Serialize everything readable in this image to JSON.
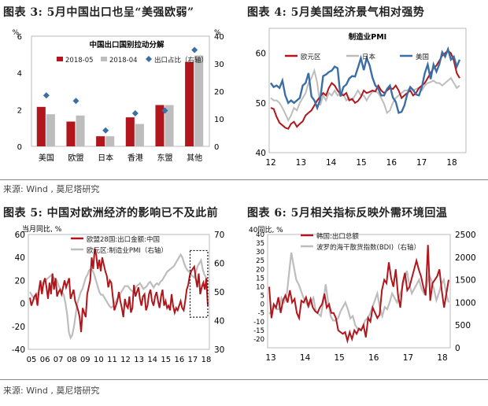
{
  "panels": [
    {
      "title": "图表 3:  5月中国出口也呈“美强欧弱”"
    },
    {
      "title": "图表 4:  5月美国经济景气相对强势"
    },
    {
      "title": "图表 5:  中国对欧洲经济的影响已不及此前"
    },
    {
      "title": "图表 6:  5月相关指标反映外需环境回温"
    }
  ],
  "sources": [
    "来源: Wind , 莫尼塔研究",
    "来源: Wind , 莫尼塔研究"
  ],
  "colors": {
    "red": "#b0161c",
    "gray": "#bdbdbd",
    "blue": "#3b6ea5",
    "navy": "#25518a"
  },
  "chart_data": [
    {
      "type": "bar",
      "title": "中国出口国别拉动分解",
      "categories": [
        "美国",
        "欧盟",
        "日本",
        "香港",
        "东盟",
        "其他"
      ],
      "series": [
        {
          "name": "2018-05",
          "values": [
            2.15,
            1.35,
            0.55,
            1.58,
            2.25,
            4.6
          ]
        },
        {
          "name": "2018-04",
          "values": [
            1.75,
            1.68,
            0.55,
            1.22,
            2.25,
            4.95
          ]
        },
        {
          "name": "出口占比（右轴）",
          "axis": "right",
          "values": [
            18.5,
            16.5,
            5.8,
            12.0,
            13.0,
            35.0
          ]
        }
      ],
      "ylim": [
        0,
        6
      ],
      "yticks": [
        0,
        2,
        4,
        6
      ],
      "y2lim": [
        0,
        40
      ],
      "y2ticks": [
        0,
        10,
        20,
        30,
        40
      ],
      "yunit": "%",
      "y2unit": "%"
    },
    {
      "type": "line",
      "title": "制造业PMI",
      "xticks": [
        "12",
        "13",
        "14",
        "15",
        "16",
        "17",
        "18"
      ],
      "ylim": [
        40,
        65
      ],
      "yticks": [
        40,
        50,
        60
      ],
      "series": [
        {
          "name": "欧元区",
          "values": [
            49.0,
            48.8,
            47.2,
            46.0,
            45.5,
            45.0,
            44.8,
            45.8,
            46.2,
            45.2,
            45.8,
            46.3,
            47.5,
            48.0,
            48.5,
            49.5,
            50.5,
            51.2,
            52.0,
            51.5,
            53.0,
            54.0,
            53.5,
            52.5,
            51.8,
            51.5,
            52.0,
            50.5,
            50.8,
            50.0,
            50.4,
            51.2,
            52.5,
            52.0,
            52.2,
            52.5,
            52.3,
            53.5,
            52.5,
            52.0,
            52.5,
            53.0,
            52.8,
            53.5,
            52.5,
            51.0,
            51.5,
            52.0,
            52.5,
            51.5,
            52.0,
            53.0,
            53.5,
            54.0,
            55.0,
            56.0,
            57.0,
            57.5,
            58.5,
            59.5,
            60.0,
            60.5,
            60.0,
            58.5,
            56.0,
            55.0
          ],
          "color": "#b0161c"
        },
        {
          "name": "日本",
          "values": [
            51.0,
            50.5,
            50.5,
            50.0,
            49.0,
            47.8,
            46.5,
            47.5,
            49.0,
            48.5,
            50.0,
            51.0,
            52.0,
            54.0,
            55.0,
            56.5,
            54.0,
            49.5,
            51.5,
            50.5,
            52.0,
            51.5,
            52.5,
            51.5,
            52.0,
            51.8,
            50.5,
            51.0,
            50.5,
            51.5,
            52.5,
            51.5,
            51.5,
            50.5,
            51.5,
            52.2,
            52.4,
            52.0,
            51.0,
            49.8,
            48.0,
            48.5,
            50.0,
            51.0,
            51.5,
            52.0,
            52.5,
            52.5,
            53.0,
            52.5,
            52.8,
            53.0,
            52.5,
            53.5,
            54.0,
            54.2,
            54.5,
            54.0,
            54.0,
            53.5,
            54.0,
            54.5,
            55.0,
            54.0,
            53.0,
            53.5
          ],
          "color": "#bdbdbd"
        },
        {
          "name": "美国",
          "values": [
            54.0,
            53.2,
            53.5,
            53.0,
            54.5,
            51.5,
            50.0,
            50.5,
            50.0,
            50.5,
            51.0,
            53.5,
            54.0,
            56.0,
            51.3,
            50.5,
            49.0,
            50.7,
            55.4,
            55.7,
            56.2,
            56.5,
            57.3,
            57.0,
            51.3,
            53.2,
            53.7,
            54.9,
            55.4,
            55.3,
            57.1,
            59.0,
            56.6,
            59.0,
            57.6,
            55.1,
            53.5,
            52.9,
            51.5,
            51.5,
            52.8,
            53.5,
            51.1,
            50.2,
            48.0,
            48.2,
            49.5,
            51.8,
            53.2,
            52.6,
            51.7,
            51.5,
            53.2,
            56.0,
            57.7,
            54.8,
            57.7,
            56.3,
            57.8,
            60.2,
            59.3,
            60.8,
            58.7,
            59.3,
            57.3,
            58.7
          ],
          "color": "#3b6ea5"
        }
      ]
    },
    {
      "type": "line",
      "title": "",
      "yunit": "当月同比, %",
      "xticks": [
        "05",
        "06",
        "07",
        "08",
        "09",
        "10",
        "11",
        "12",
        "13",
        "14",
        "15",
        "16",
        "17",
        "18"
      ],
      "ylim": [
        -40,
        60
      ],
      "yticks": [
        -40,
        -20,
        0,
        20,
        40,
        60
      ],
      "y2lim": [
        30,
        70
      ],
      "y2ticks": [
        30,
        40,
        50,
        60,
        70
      ],
      "annotation": "dotted box 2016-10 to 2018-06",
      "series": [
        {
          "name": "欧盟28国:出口金额:中国",
          "values": [
            5,
            -2,
            2,
            6,
            8,
            -2,
            12,
            20,
            8,
            18,
            22,
            14,
            4,
            18,
            8,
            26,
            12,
            22,
            6,
            10,
            12,
            8,
            14,
            20,
            14,
            18,
            22,
            4,
            8,
            12,
            2,
            -2,
            -6,
            -12,
            -25,
            -4,
            -8,
            -12,
            8,
            14,
            20,
            40,
            30,
            48,
            42,
            30,
            38,
            28,
            40,
            34,
            28,
            24,
            14,
            20,
            18,
            6,
            -6,
            -2,
            2,
            10,
            2,
            -4,
            -12,
            4,
            -2,
            -4,
            6,
            -8,
            -4,
            16,
            6,
            10,
            14,
            4,
            -2,
            6,
            8,
            -6,
            -2,
            8,
            12,
            2,
            -2,
            6,
            10,
            2,
            -4,
            6,
            12,
            -2,
            2,
            -4,
            -2,
            -6,
            8,
            -2,
            -8,
            -4,
            -6,
            -2,
            2,
            -4,
            -6,
            2,
            12,
            16,
            24,
            28,
            30,
            32,
            22,
            14,
            26,
            8,
            14,
            18,
            12,
            22,
            -2
          ],
          "color": "#b0161c"
        },
        {
          "name": "欧元区:制造业PMI（右轴）",
          "axis": "right",
          "values": [
            50,
            49,
            48,
            47.5,
            48.5,
            49.8,
            51,
            51.5,
            52.5,
            53.5,
            54.5,
            55,
            55.5,
            56,
            55,
            54.5,
            54,
            52,
            51,
            50,
            49,
            46,
            42,
            36,
            34,
            35,
            38,
            42,
            46,
            48,
            50,
            51,
            53,
            55,
            56,
            57.5,
            58,
            57.5,
            56,
            54,
            52,
            50,
            49,
            49,
            48,
            47,
            46,
            45,
            44.5,
            45,
            46,
            47,
            48,
            49,
            50,
            51,
            52,
            52,
            52,
            51,
            50.5,
            50,
            51,
            52,
            52.5,
            53,
            52,
            51,
            51.5,
            52,
            53,
            53.5,
            52.5,
            51.5,
            52.5,
            53,
            52.5,
            53.5,
            54,
            55,
            56,
            57,
            57.5,
            58,
            58.5,
            59,
            60,
            61,
            62,
            63,
            62,
            60,
            58.5,
            57.5,
            57,
            56,
            55.5,
            55,
            57,
            59,
            60,
            61,
            58,
            56,
            55,
            54
          ],
          "color": "#bdbdbd"
        }
      ]
    },
    {
      "type": "line",
      "title": "",
      "yunit": "40同比, %",
      "xticks": [
        "13",
        "14",
        "15",
        "16",
        "17",
        "18"
      ],
      "ylim": [
        -25,
        40
      ],
      "yticks": [
        -20,
        -15,
        -10,
        -5,
        0,
        5,
        10,
        15,
        20,
        25,
        30,
        35,
        40
      ],
      "y2lim": [
        0,
        2500
      ],
      "y2ticks": [
        0,
        500,
        1000,
        1500,
        2000,
        2500
      ],
      "series": [
        {
          "name": "韩国:出口总额",
          "values": [
            10,
            -8,
            0,
            -2,
            4,
            -5,
            2,
            5,
            1,
            8,
            1,
            3,
            -5,
            -8,
            2,
            1,
            4,
            -1,
            3,
            -2,
            -4,
            -5,
            -2,
            0,
            6,
            -2,
            0,
            -5,
            -5,
            -8,
            -15,
            -16,
            -17,
            -16,
            -21,
            -16,
            -20,
            -15,
            -17,
            -14,
            -15,
            -12,
            -19,
            -8,
            -10,
            -2,
            -5,
            -8,
            -6,
            8,
            14,
            12,
            24,
            15,
            10,
            20,
            5,
            -2,
            12,
            18,
            8,
            10,
            15,
            20,
            25,
            20,
            16,
            10,
            5,
            34,
            2,
            12,
            14,
            16,
            20,
            8,
            -2,
            6,
            14
          ],
          "color": "#b0161c"
        },
        {
          "name": "波罗的海干散货指数(BDI)（右轴）",
          "axis": "right",
          "values": [
            750,
            800,
            900,
            850,
            850,
            1100,
            1000,
            1100,
            1600,
            2100,
            1800,
            1500,
            1400,
            1250,
            1100,
            1000,
            900,
            1000,
            1100,
            800,
            750,
            700,
            1000,
            1400,
            1000,
            700,
            600,
            600,
            650,
            800,
            900,
            1000,
            850,
            650,
            700,
            500,
            420,
            380,
            450,
            600,
            650,
            750,
            900,
            1050,
            1200,
            900,
            700,
            900,
            850,
            1000,
            1200,
            1100,
            1000,
            1150,
            1300,
            1500,
            1700,
            1400,
            1200,
            1300,
            1400,
            1500,
            1300,
            1200,
            1350,
            1600,
            1500,
            1300,
            1050,
            1200,
            1400,
            1500,
            1200,
            1000
          ],
          "color": "#bdbdbd"
        }
      ]
    }
  ]
}
